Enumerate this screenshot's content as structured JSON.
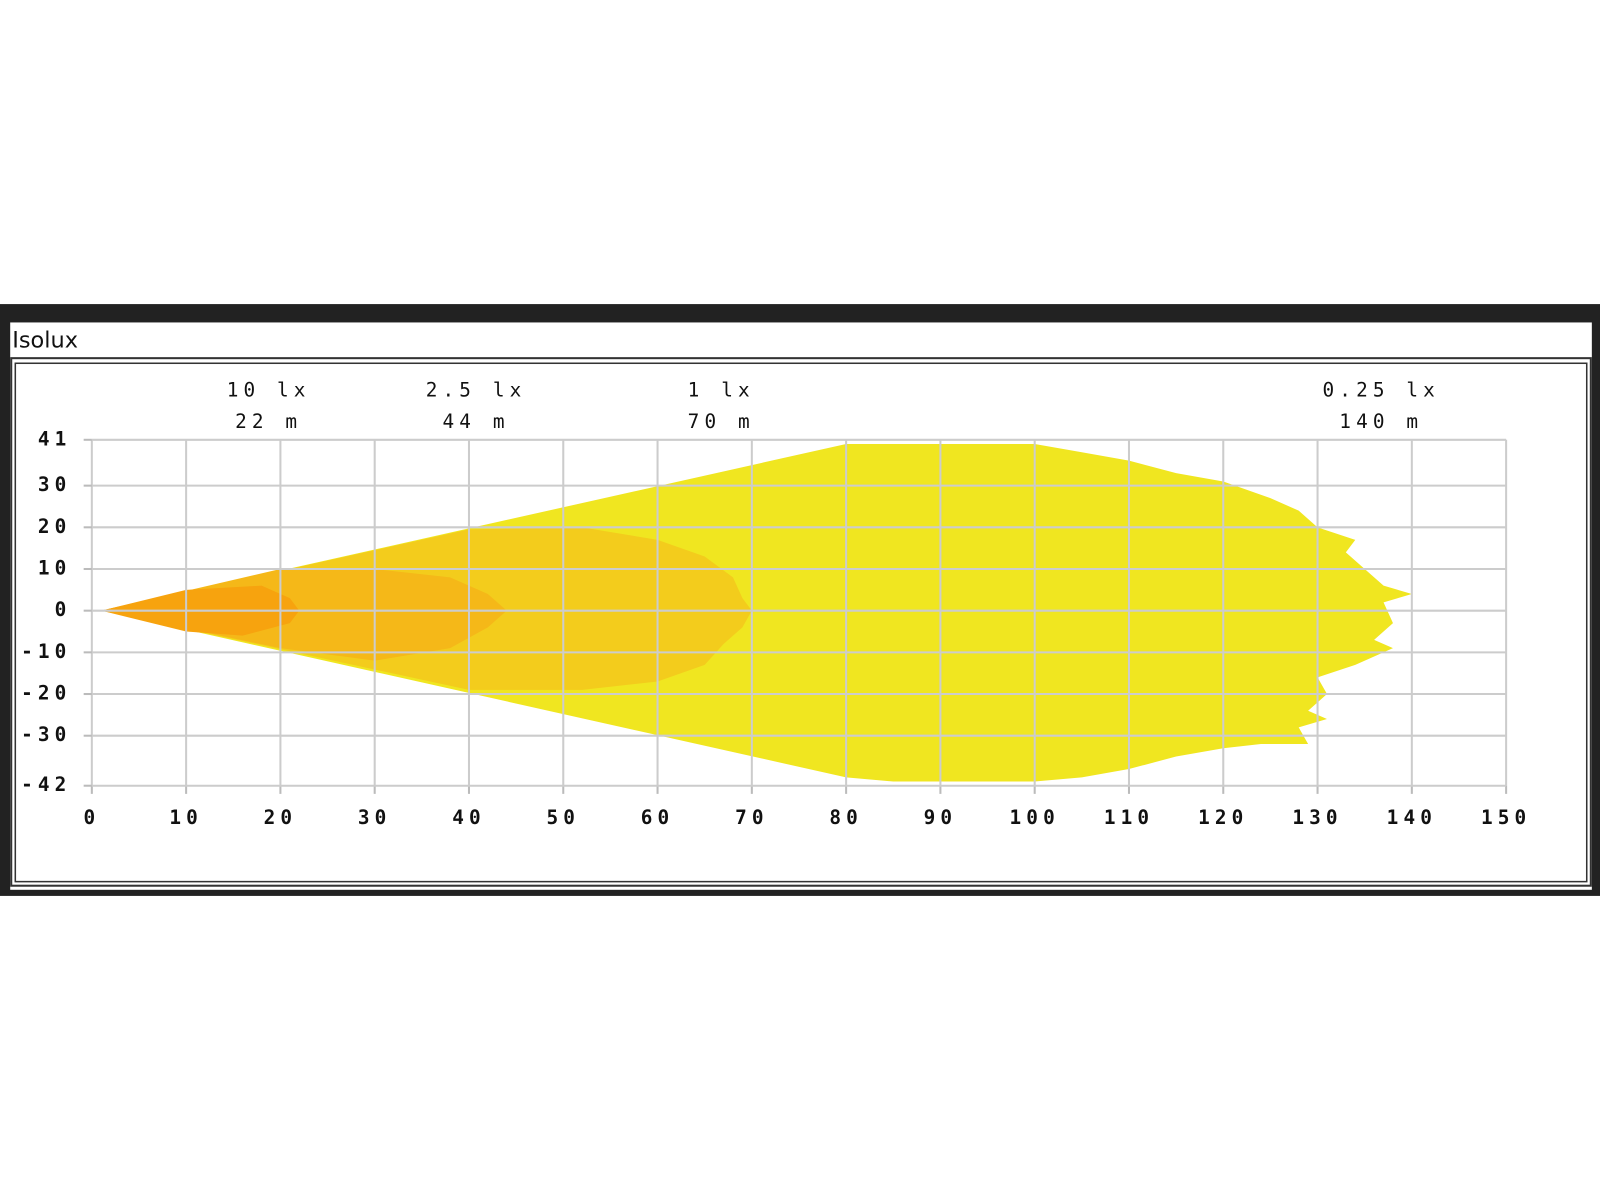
{
  "window_title": "Isolux",
  "chart_data": {
    "type": "isolux",
    "xlim": [
      0,
      150
    ],
    "xticks": [
      0,
      10,
      20,
      30,
      40,
      50,
      60,
      70,
      80,
      90,
      100,
      110,
      120,
      130,
      140,
      150
    ],
    "ylim": [
      -42,
      41
    ],
    "yticks": [
      41,
      30,
      20,
      10,
      0,
      -10,
      -20,
      -30,
      -42
    ],
    "grid": true,
    "series": [
      {
        "name": "0.25 lx",
        "distance": {
          "value": 140,
          "label": "140 m"
        },
        "color": "#f0e620",
        "x": [
          1,
          80,
          100,
          105,
          110,
          115,
          120,
          125,
          128,
          130,
          134,
          133,
          135,
          137,
          140,
          137,
          138,
          136,
          138,
          134,
          130,
          131,
          129,
          131,
          128,
          129,
          124,
          120,
          115,
          110,
          105,
          100,
          85,
          80
        ],
        "values": [
          0,
          40,
          40,
          38,
          36,
          33,
          31,
          27,
          24,
          20,
          17,
          14,
          10,
          6,
          4,
          2,
          -3,
          -7,
          -9,
          -13,
          -16,
          -20,
          -24,
          -26,
          -28,
          -32,
          -32,
          -33,
          -35,
          -38,
          -40,
          -41,
          -41,
          -40
        ]
      },
      {
        "name": "1 lx",
        "distance": {
          "value": 70,
          "label": "70 m"
        },
        "color": "#f3cc1c",
        "x": [
          1,
          40,
          52,
          60,
          65,
          68,
          69,
          70,
          69,
          67,
          65,
          60,
          52,
          40
        ],
        "values": [
          0,
          19.5,
          20,
          17,
          13,
          8,
          3,
          0,
          -4,
          -8,
          -13,
          -17,
          -19,
          -19
        ]
      },
      {
        "name": "2.5 lx",
        "distance": {
          "value": 44,
          "label": "44 m"
        },
        "color": "#f5b818",
        "x": [
          1,
          20,
          30,
          38,
          42,
          44,
          42,
          38,
          30,
          20
        ],
        "values": [
          0,
          10,
          10,
          8,
          4,
          0,
          -4,
          -9,
          -12,
          -9
        ]
      },
      {
        "name": "10 lx",
        "distance": {
          "value": 22,
          "label": "22 m"
        },
        "color": "#f7a30e",
        "x": [
          1,
          10,
          18,
          21,
          22,
          21,
          16,
          10
        ],
        "values": [
          0,
          5,
          6,
          3,
          0,
          -3,
          -6,
          -5
        ]
      }
    ]
  }
}
